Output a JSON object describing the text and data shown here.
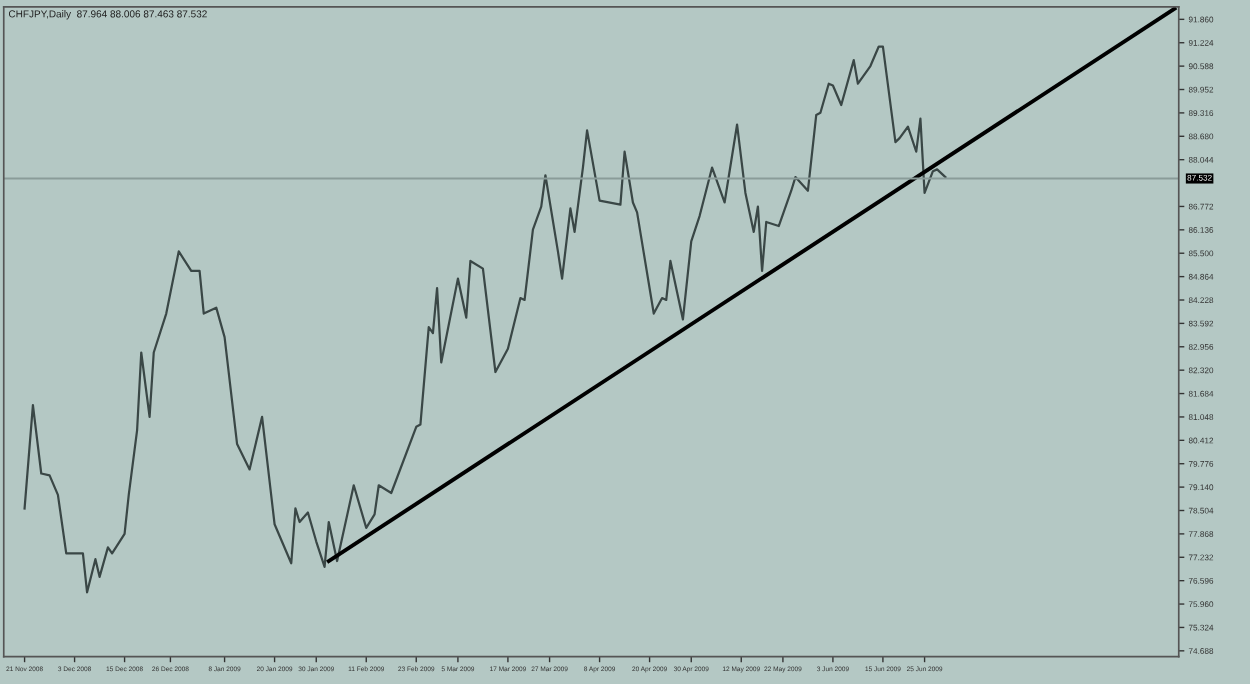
{
  "chart_data": {
    "type": "line",
    "title": "CHFJPY,Daily  87.964 88.006 87.463 87.532",
    "series": [
      {
        "color": "#3a4746",
        "x": [
          "2008-11-21",
          "2008-11-23",
          "2008-11-25",
          "2008-11-27",
          "2008-11-29",
          "2008-12-01",
          "2008-12-05",
          "2008-12-06",
          "2008-12-08",
          "2008-12-09",
          "2008-12-11",
          "2008-12-12",
          "2008-12-15",
          "2008-12-16",
          "2008-12-18",
          "2008-12-19",
          "2008-12-21",
          "2008-12-22",
          "2008-12-25",
          "2008-12-28",
          "2008-12-31",
          "2009-01-02",
          "2009-01-03",
          "2009-01-06",
          "2009-01-08",
          "2009-01-11",
          "2009-01-14",
          "2009-01-17",
          "2009-01-20",
          "2009-01-24",
          "2009-01-25",
          "2009-01-26",
          "2009-01-28",
          "2009-01-30",
          "2009-02-01",
          "2009-02-02",
          "2009-02-04",
          "2009-02-08",
          "2009-02-11",
          "2009-02-13",
          "2009-02-14",
          "2009-02-17",
          "2009-02-23",
          "2009-02-24",
          "2009-02-26",
          "2009-02-27",
          "2009-02-28",
          "2009-03-01",
          "2009-03-05",
          "2009-03-07",
          "2009-03-08",
          "2009-03-11",
          "2009-03-14",
          "2009-03-17",
          "2009-03-20",
          "2009-03-21",
          "2009-03-23",
          "2009-03-25",
          "2009-03-26",
          "2009-03-29",
          "2009-03-30",
          "2009-04-01",
          "2009-04-02",
          "2009-04-04",
          "2009-04-05",
          "2009-04-08",
          "2009-04-13",
          "2009-04-14",
          "2009-04-16",
          "2009-04-17",
          "2009-04-21",
          "2009-04-23",
          "2009-04-24",
          "2009-04-25",
          "2009-04-28",
          "2009-04-30",
          "2009-05-02",
          "2009-05-05",
          "2009-05-08",
          "2009-05-11",
          "2009-05-13",
          "2009-05-15",
          "2009-05-16",
          "2009-05-17",
          "2009-05-18",
          "2009-05-21",
          "2009-05-24",
          "2009-05-25",
          "2009-05-28",
          "2009-05-30",
          "2009-05-31",
          "2009-06-02",
          "2009-06-03",
          "2009-06-05",
          "2009-06-08",
          "2009-06-09",
          "2009-06-12",
          "2009-06-14",
          "2009-06-15",
          "2009-06-18",
          "2009-06-19",
          "2009-06-21",
          "2009-06-23",
          "2009-06-24",
          "2009-06-25",
          "2009-06-27",
          "2009-06-28",
          "2009-06-30"
        ],
        "values": [
          78.56,
          81.37,
          79.51,
          79.46,
          78.93,
          77.34,
          77.34,
          76.28,
          77.18,
          76.7,
          77.5,
          77.34,
          77.87,
          78.93,
          80.68,
          82.8,
          81.05,
          82.8,
          83.86,
          85.55,
          85.02,
          85.02,
          83.86,
          84.02,
          83.22,
          80.31,
          79.62,
          81.05,
          78.13,
          77.07,
          78.56,
          78.19,
          78.45,
          77.66,
          76.97,
          78.19,
          77.13,
          79.19,
          78.03,
          78.4,
          79.19,
          78.98,
          80.78,
          80.84,
          83.49,
          83.33,
          84.55,
          82.53,
          84.81,
          83.75,
          85.29,
          85.08,
          82.27,
          82.9,
          84.28,
          84.23,
          86.14,
          86.77,
          87.62,
          85.55,
          84.81,
          86.72,
          86.08,
          87.83,
          88.84,
          86.93,
          86.82,
          88.26,
          86.88,
          86.61,
          83.86,
          84.28,
          84.23,
          85.29,
          83.7,
          85.82,
          86.51,
          87.83,
          86.88,
          89.0,
          87.14,
          86.08,
          86.77,
          85.02,
          86.35,
          86.24,
          87.2,
          87.57,
          87.2,
          89.26,
          89.32,
          90.11,
          90.06,
          89.53,
          90.75,
          90.11,
          90.59,
          91.12,
          91.12,
          88.52,
          88.63,
          88.94,
          88.26,
          89.16,
          87.14,
          87.73,
          87.78,
          87.57
        ]
      },
      {
        "color": "#000000",
        "x": [
          "2009-02-02",
          "2009-08-24"
        ],
        "values": [
          77.13,
          92.15
        ]
      }
    ],
    "xlim": [
      "2008-11-16",
      "2009-08-25"
    ],
    "ylim": [
      74.53,
      92.2
    ],
    "xticks": [
      {
        "value": "2008-11-21",
        "label": "21 Nov 2008"
      },
      {
        "value": "2008-12-03",
        "label": "3 Dec 2008"
      },
      {
        "value": "2008-12-15",
        "label": "15 Dec 2008"
      },
      {
        "value": "2008-12-26",
        "label": "26 Dec 2008"
      },
      {
        "value": "2009-01-08",
        "label": "8 Jan 2009"
      },
      {
        "value": "2009-01-20",
        "label": "20 Jan 2009"
      },
      {
        "value": "2009-01-30",
        "label": "30 Jan 2009"
      },
      {
        "value": "2009-02-11",
        "label": "11 Feb 2009"
      },
      {
        "value": "2009-02-23",
        "label": "23 Feb 2009"
      },
      {
        "value": "2009-03-05",
        "label": "5 Mar 2009"
      },
      {
        "value": "2009-03-17",
        "label": "17 Mar 2009"
      },
      {
        "value": "2009-03-27",
        "label": "27 Mar 2009"
      },
      {
        "value": "2009-04-08",
        "label": "8 Apr 2009"
      },
      {
        "value": "2009-04-20",
        "label": "20 Apr 2009"
      },
      {
        "value": "2009-04-30",
        "label": "30 Apr 2009"
      },
      {
        "value": "2009-05-12",
        "label": "12 May 2009"
      },
      {
        "value": "2009-05-22",
        "label": "22 May 2009"
      },
      {
        "value": "2009-06-03",
        "label": "3 Jun 2009"
      },
      {
        "value": "2009-06-15",
        "label": "15 Jun 2009"
      },
      {
        "value": "2009-06-25",
        "label": "25 Jun 2009"
      }
    ],
    "yticks": [
      {
        "value": 91.86,
        "label": "91.860"
      },
      {
        "value": 91.224,
        "label": "91.224"
      },
      {
        "value": 90.588,
        "label": "90.588"
      },
      {
        "value": 89.952,
        "label": "89.952"
      },
      {
        "value": 89.316,
        "label": "89.316"
      },
      {
        "value": 88.68,
        "label": "88.680"
      },
      {
        "value": 88.044,
        "label": "88.044"
      },
      {
        "value": 86.772,
        "label": "86.772"
      },
      {
        "value": 86.136,
        "label": "86.136"
      },
      {
        "value": 85.5,
        "label": "85.500"
      },
      {
        "value": 84.864,
        "label": "84.864"
      },
      {
        "value": 84.228,
        "label": "84.228"
      },
      {
        "value": 83.592,
        "label": "83.592"
      },
      {
        "value": 82.956,
        "label": "82.956"
      },
      {
        "value": 82.32,
        "label": "82.320"
      },
      {
        "value": 81.684,
        "label": "81.684"
      },
      {
        "value": 81.048,
        "label": "81.048"
      },
      {
        "value": 80.412,
        "label": "80.412"
      },
      {
        "value": 79.776,
        "label": "79.776"
      },
      {
        "value": 79.14,
        "label": "79.140"
      },
      {
        "value": 78.504,
        "label": "78.504"
      },
      {
        "value": 77.868,
        "label": "77.868"
      },
      {
        "value": 77.232,
        "label": "77.232"
      },
      {
        "value": 76.596,
        "label": "76.596"
      },
      {
        "value": 75.96,
        "label": "75.960"
      },
      {
        "value": 75.324,
        "label": "75.324"
      },
      {
        "value": 74.688,
        "label": "74.688"
      }
    ],
    "ref_lines": [
      {
        "axis": "y",
        "value": 87.532,
        "label": "87.532",
        "color": "#8a9c99",
        "line_style": "solid"
      }
    ],
    "grid": false
  }
}
